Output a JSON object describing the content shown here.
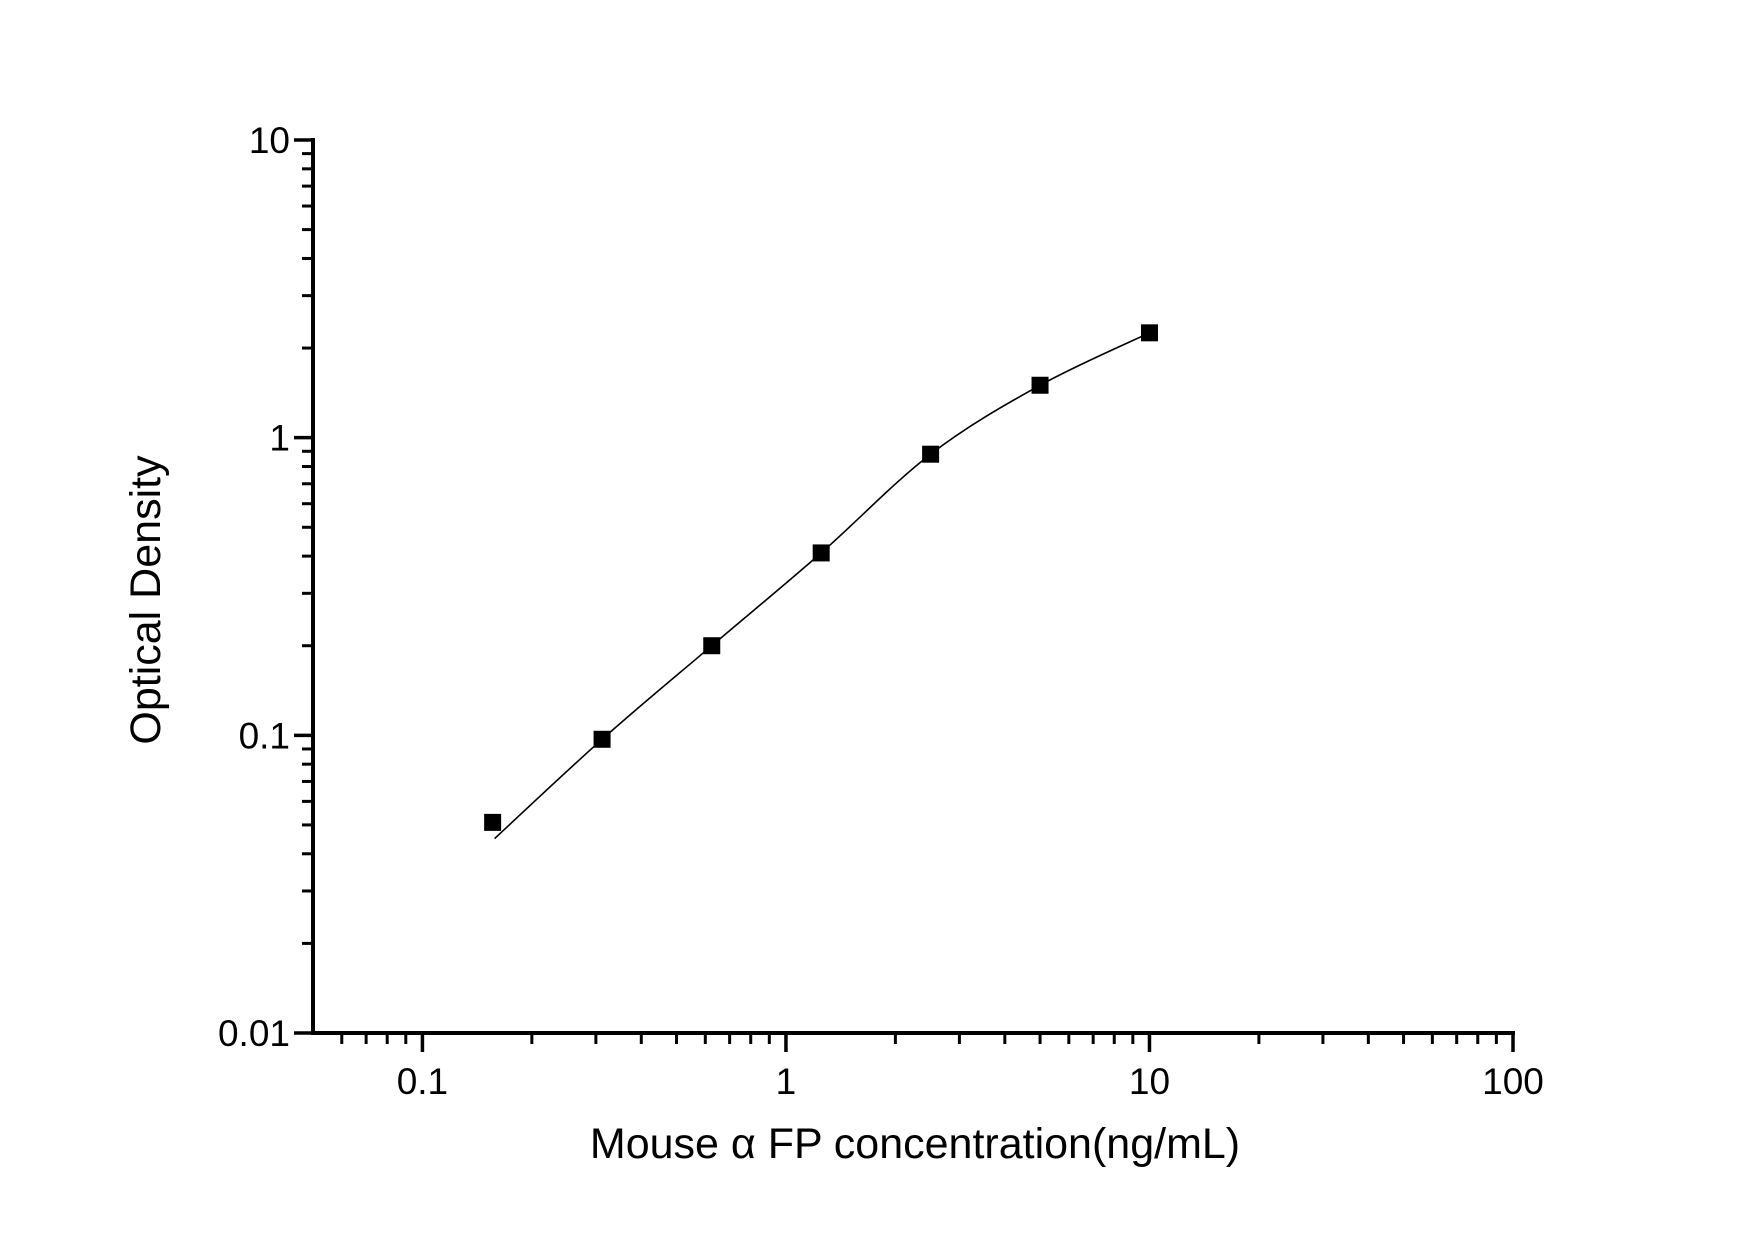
{
  "page": {
    "background_color": "#ffffff",
    "foreground_color": "#000000"
  },
  "chart_data": {
    "type": "scatter",
    "title": "",
    "xlabel": "Mouse α FP concentration(ng/mL)",
    "ylabel": "Optical Density",
    "x_scale": "log",
    "y_scale": "log",
    "xlim": [
      0.05,
      100
    ],
    "ylim": [
      0.01,
      10
    ],
    "grid": false,
    "legend": "none",
    "x_ticks": [
      {
        "value": 0.1,
        "label": "0.1"
      },
      {
        "value": 1,
        "label": "1"
      },
      {
        "value": 10,
        "label": "10"
      },
      {
        "value": 100,
        "label": "100"
      }
    ],
    "y_ticks": [
      {
        "value": 10,
        "label": "10"
      },
      {
        "value": 1,
        "label": "1"
      },
      {
        "value": 0.1,
        "label": "0.1"
      },
      {
        "value": 0.01,
        "label": "0.01"
      }
    ],
    "series": [
      {
        "marker": "filled-square",
        "marker_color": "#000000",
        "line_color": "#000000",
        "points": [
          {
            "x": 0.156,
            "y": 0.051
          },
          {
            "x": 0.312,
            "y": 0.097
          },
          {
            "x": 0.625,
            "y": 0.2
          },
          {
            "x": 1.25,
            "y": 0.41
          },
          {
            "x": 2.5,
            "y": 0.88
          },
          {
            "x": 5,
            "y": 1.5
          },
          {
            "x": 10,
            "y": 2.25
          }
        ],
        "fit_curve_start": {
          "x": 0.158,
          "y": 0.045
        }
      }
    ]
  }
}
